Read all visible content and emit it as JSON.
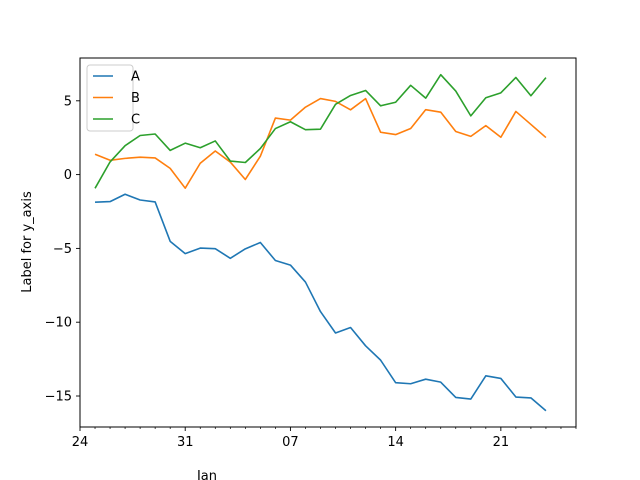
{
  "chart_data": {
    "type": "line",
    "title": "",
    "xlabel": "Jan",
    "ylabel": "Label for y_axis",
    "x": [
      "2000-01-25",
      "2000-01-26",
      "2000-01-27",
      "2000-01-28",
      "2000-01-29",
      "2000-01-30",
      "2000-01-31",
      "2000-02-01",
      "2000-02-02",
      "2000-02-03",
      "2000-02-04",
      "2000-02-05",
      "2000-02-06",
      "2000-02-07",
      "2000-02-08",
      "2000-02-09",
      "2000-02-10",
      "2000-02-11",
      "2000-02-12",
      "2000-02-13",
      "2000-02-14",
      "2000-02-15",
      "2000-02-16",
      "2000-02-17",
      "2000-02-18",
      "2000-02-19",
      "2000-02-20",
      "2000-02-21",
      "2000-02-22",
      "2000-02-23",
      "2000-02-24"
    ],
    "xlim": [
      "2000-01-24",
      "2000-02-26"
    ],
    "x_major_ticks": [
      {
        "date": "2000-01-24",
        "label": "24"
      },
      {
        "date": "2000-01-31",
        "label": "31"
      },
      {
        "date": "2000-02-07",
        "label": "07"
      },
      {
        "date": "2000-02-14",
        "label": "14"
      },
      {
        "date": "2000-02-21",
        "label": "21"
      }
    ],
    "ylim": [
      -17.1,
      7.9
    ],
    "y_ticks": [
      -15,
      -10,
      -5,
      0,
      5
    ],
    "y_tick_labels": [
      "−15",
      "−10",
      "−5",
      "0",
      "5"
    ],
    "grid": false,
    "legend_position": "top-left",
    "series": [
      {
        "name": "A",
        "color": "#1f77b4",
        "values": [
          -1.87,
          -1.83,
          -1.33,
          -1.72,
          -1.85,
          -4.52,
          -5.35,
          -4.98,
          -5.02,
          -5.67,
          -5.03,
          -4.6,
          -5.82,
          -6.13,
          -7.28,
          -9.28,
          -10.73,
          -10.36,
          -11.6,
          -12.57,
          -14.1,
          -14.17,
          -13.86,
          -14.06,
          -15.1,
          -15.21,
          -13.63,
          -13.81,
          -15.07,
          -15.13,
          -16.0
        ]
      },
      {
        "name": "B",
        "color": "#ff7f0e",
        "values": [
          1.38,
          0.97,
          1.1,
          1.18,
          1.13,
          0.42,
          -0.92,
          0.77,
          1.6,
          0.85,
          -0.33,
          1.25,
          3.83,
          3.69,
          4.57,
          5.15,
          4.96,
          4.39,
          5.15,
          2.87,
          2.71,
          3.12,
          4.4,
          4.23,
          2.92,
          2.59,
          3.32,
          2.53,
          4.28,
          3.4,
          2.51
        ]
      },
      {
        "name": "C",
        "color": "#2ca02c",
        "values": [
          -0.93,
          0.86,
          1.96,
          2.65,
          2.75,
          1.64,
          2.13,
          1.82,
          2.28,
          0.92,
          0.82,
          1.77,
          3.12,
          3.58,
          3.04,
          3.08,
          4.76,
          5.36,
          5.7,
          4.66,
          4.9,
          6.05,
          5.18,
          6.77,
          5.66,
          3.98,
          5.21,
          5.54,
          6.58,
          5.34,
          6.57
        ]
      }
    ]
  }
}
